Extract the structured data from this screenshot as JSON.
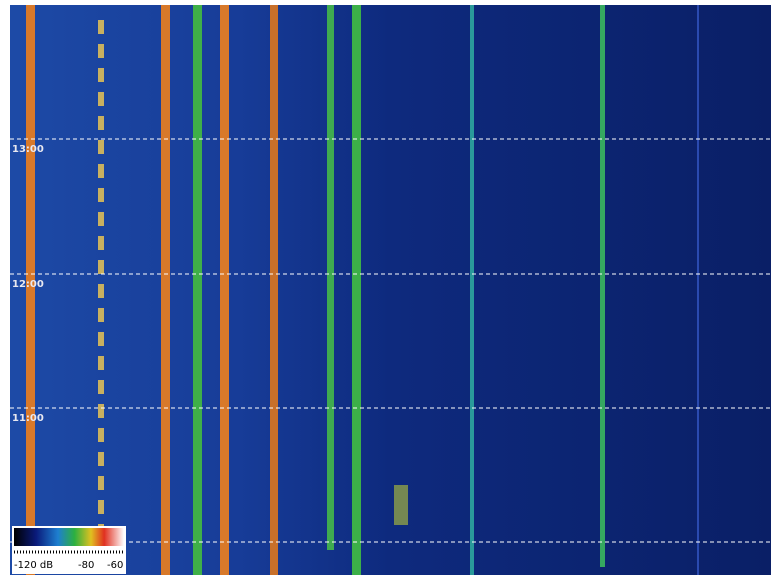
{
  "time_labels": [
    "13:00",
    "12:00",
    "11:00"
  ],
  "colorbar": {
    "labels": [
      "-120 dB",
      "-80",
      "-60"
    ]
  }
}
